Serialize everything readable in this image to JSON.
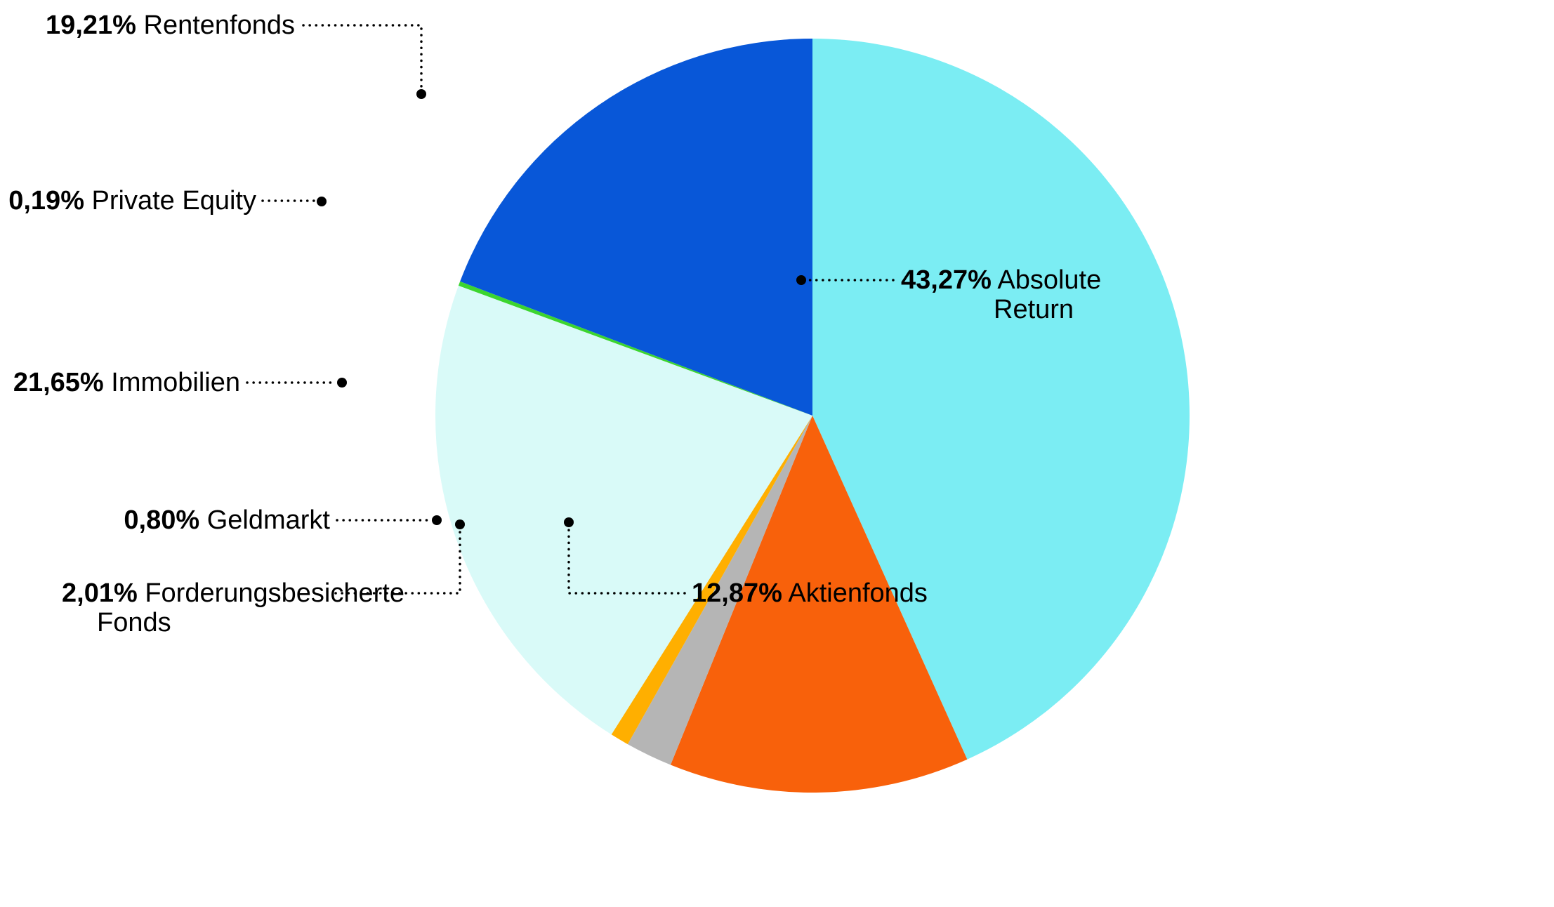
{
  "chart_data": {
    "type": "pie",
    "title": "",
    "start_angle_deg": 0,
    "direction": "clockwise",
    "legend_position": "callout-labels-around-pie",
    "background_color": "#ffffff",
    "text_color": "#000000",
    "slices": [
      {
        "label": "Absolute Return",
        "pct_label": "43,27%",
        "value": 43.27,
        "color": "#7BEDF3"
      },
      {
        "label": "Aktienfonds",
        "pct_label": "12,87%",
        "value": 12.87,
        "color": "#F8610B"
      },
      {
        "label": "Forderungsbesicherte Fonds",
        "pct_label": "2,01%",
        "value": 2.01,
        "color": "#B5B5B5"
      },
      {
        "label": "Geldmarkt",
        "pct_label": "0,80%",
        "value": 0.8,
        "color": "#FFAF00"
      },
      {
        "label": "Immobilien",
        "pct_label": "21,65%",
        "value": 21.65,
        "color": "#D9FAF8"
      },
      {
        "label": "Private Equity",
        "pct_label": "0,19%",
        "value": 0.19,
        "color": "#3CD52F"
      },
      {
        "label": "Rentenfonds",
        "pct_label": "19,21%",
        "value": 19.21,
        "color": "#0857D8"
      }
    ]
  },
  "callouts": [
    {
      "pct": "19,21%",
      "name": "Rentenfonds"
    },
    {
      "pct": "0,19%",
      "name": "Private Equity"
    },
    {
      "pct": "21,65%",
      "name": "Immobilien"
    },
    {
      "pct": "0,80%",
      "name": "Geldmarkt"
    },
    {
      "pct": "2,01%",
      "name": "Forderungsbesicherte",
      "name2": "Fonds"
    },
    {
      "pct": "12,87%",
      "name": "Aktienfonds"
    },
    {
      "pct": "43,27%",
      "name": "Absolute",
      "name2": "Return"
    }
  ]
}
